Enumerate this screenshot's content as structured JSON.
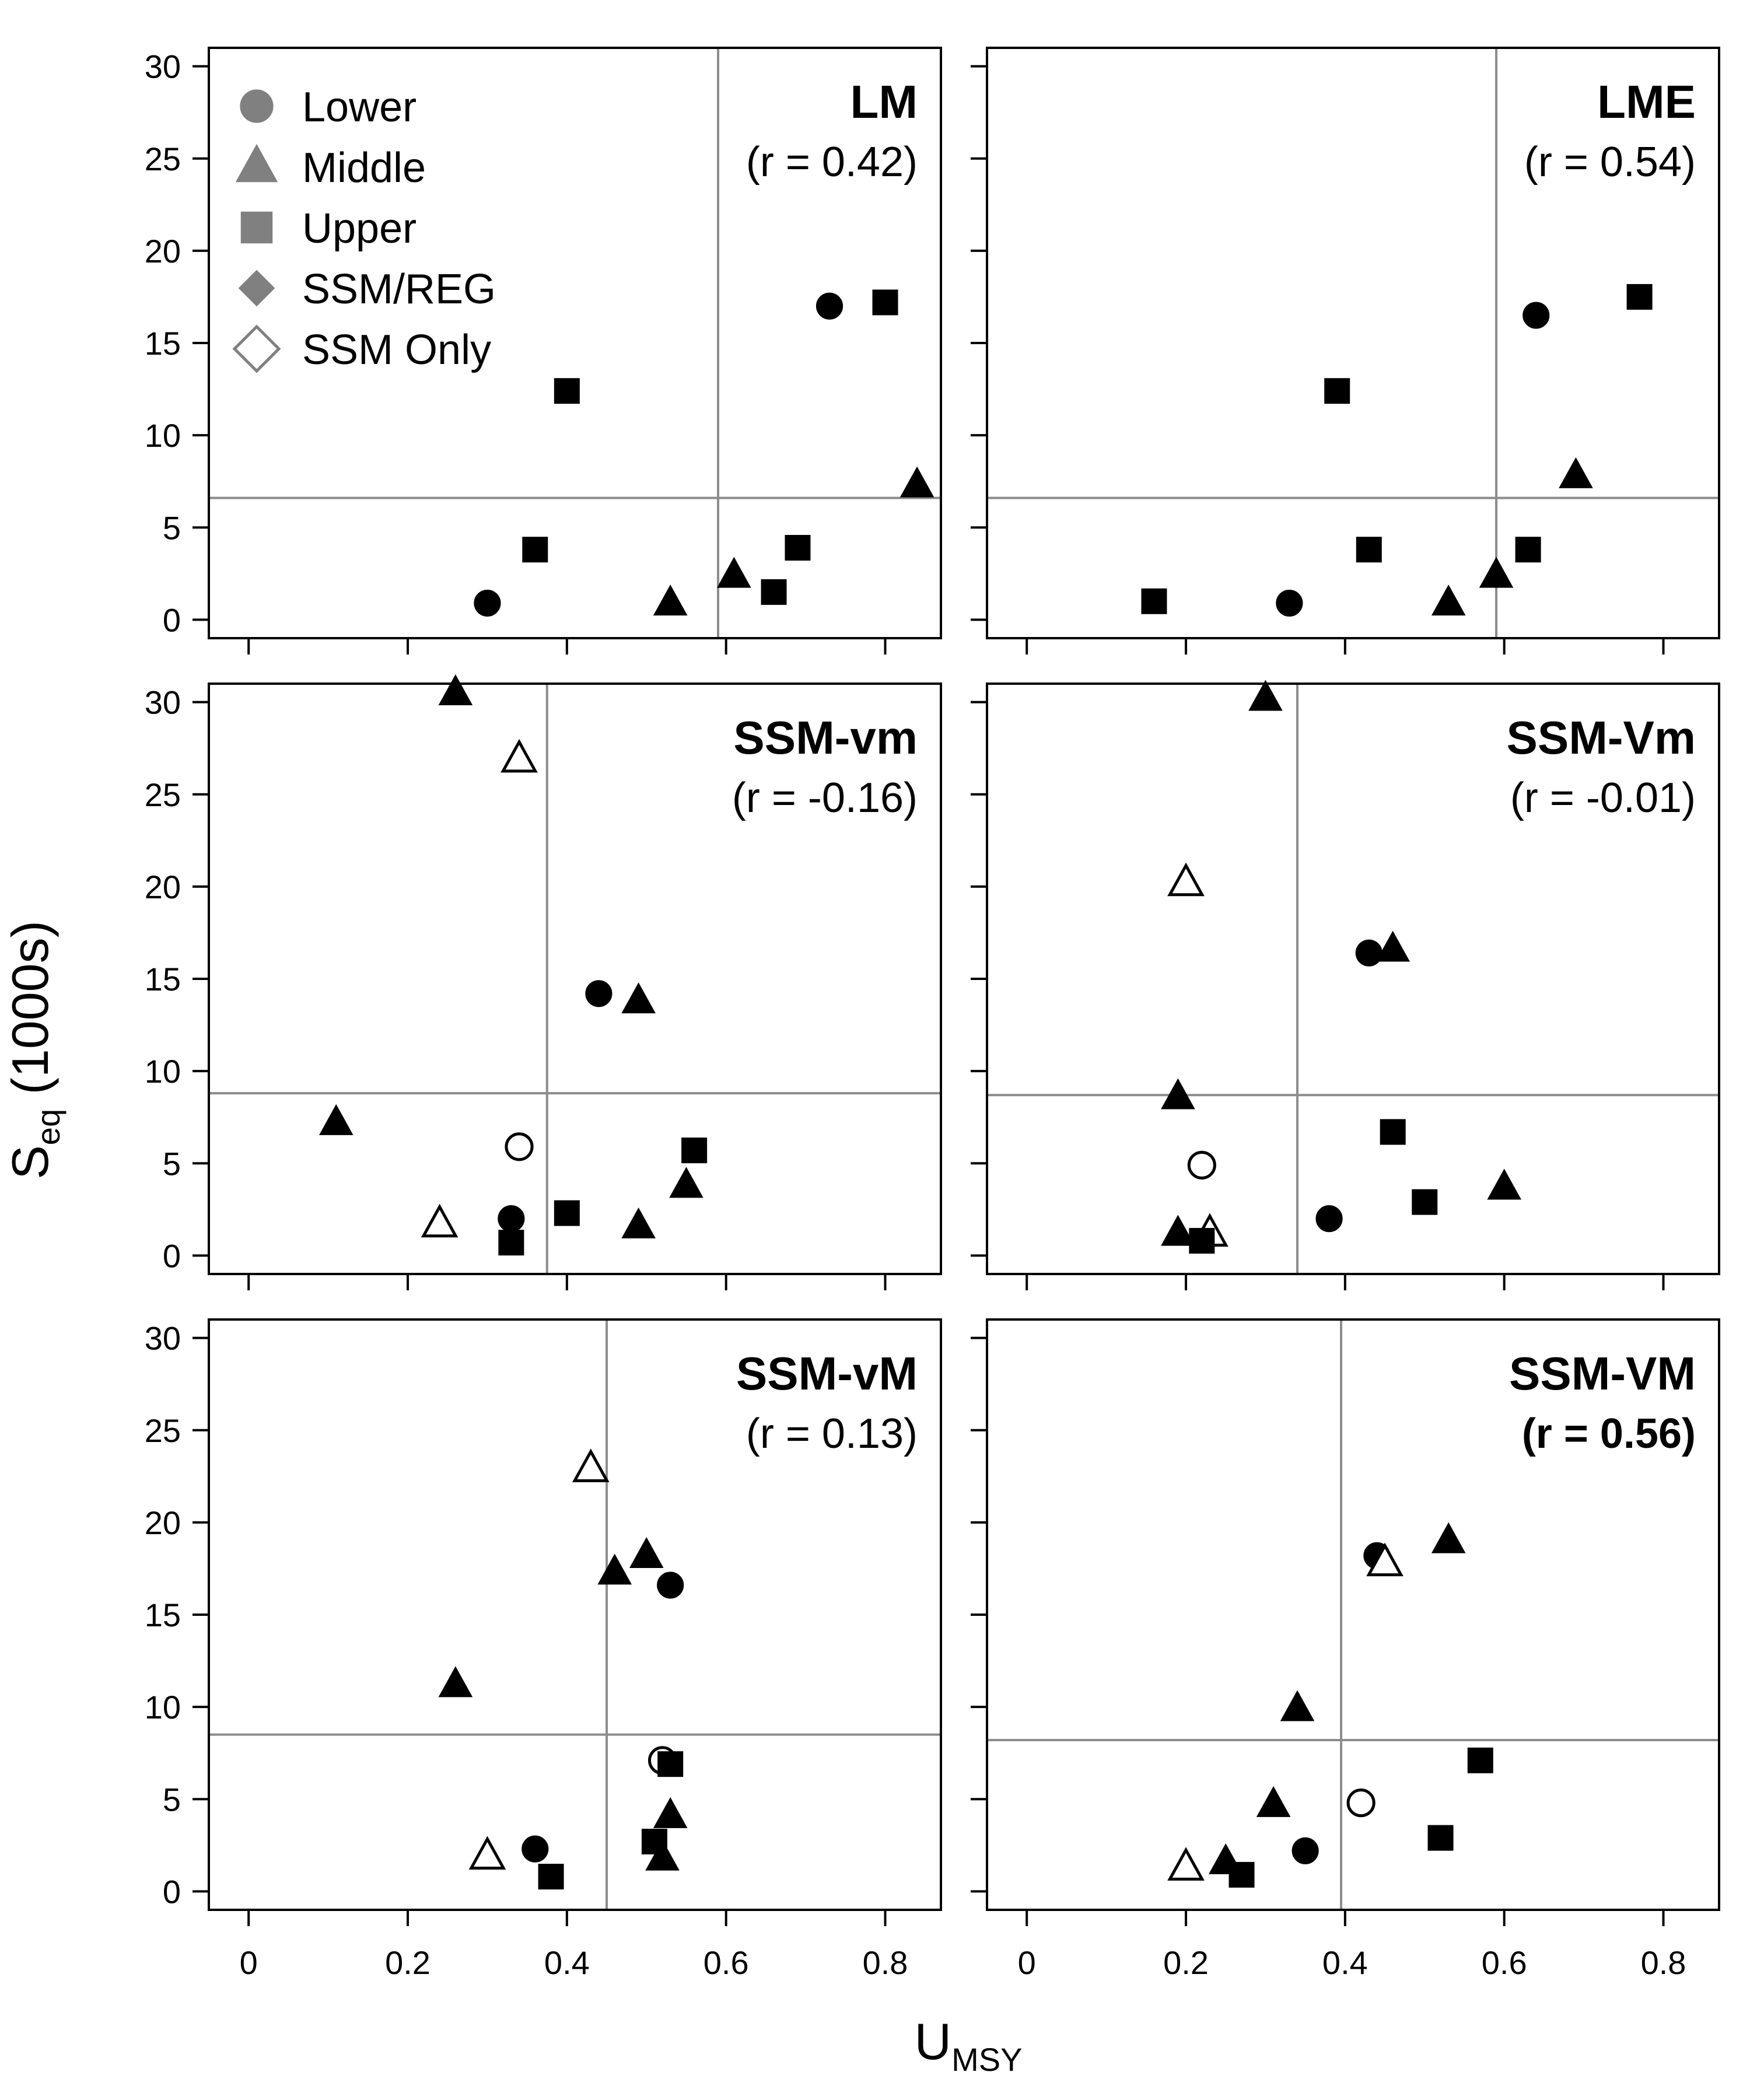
{
  "axes": {
    "xlabel_main": "U",
    "xlabel_sub": "MSY",
    "ylabel_main": "S",
    "ylabel_sub": "eq",
    "ylabel_rest": " (1000s)"
  },
  "colors": {
    "marker_fill": "#000000",
    "marker_open": "#ffffff",
    "ref_line": "#8c8c8c",
    "legend_marker": "#808080"
  },
  "legend": {
    "location": "top-left of first panel",
    "entries": [
      {
        "label": "Lower",
        "shape": "circle",
        "filled": true
      },
      {
        "label": "Middle",
        "shape": "triangle",
        "filled": true
      },
      {
        "label": "Upper",
        "shape": "square",
        "filled": true
      },
      {
        "label": "SSM/REG",
        "shape": "diamond",
        "filled": true
      },
      {
        "label": "SSM Only",
        "shape": "diamond",
        "filled": false
      }
    ]
  },
  "chart_data": [
    {
      "type": "scatter",
      "title": "LM",
      "r_label": "(r = 0.42)",
      "r_bold": false,
      "xlim": [
        -0.05,
        0.87
      ],
      "ylim": [
        -1,
        31
      ],
      "xticks": [
        0,
        0.2,
        0.4,
        0.6,
        0.8
      ],
      "xtick_labels": [
        "0",
        "0.2",
        "0.4",
        "0.6",
        "0.8"
      ],
      "yticks": [
        0,
        5,
        10,
        15,
        20,
        25,
        30
      ],
      "ytick_labels": [
        "0",
        "5",
        "10",
        "15",
        "20",
        "25",
        "30"
      ],
      "ref_lines": {
        "x": 0.59,
        "y": 6.6
      },
      "points": [
        {
          "x": 0.3,
          "y": 0.9,
          "shape": "circle",
          "filled": true
        },
        {
          "x": 0.73,
          "y": 17.0,
          "shape": "circle",
          "filled": true
        },
        {
          "x": 0.53,
          "y": 0.9,
          "shape": "triangle",
          "filled": true
        },
        {
          "x": 0.61,
          "y": 2.4,
          "shape": "triangle",
          "filled": true
        },
        {
          "x": 0.84,
          "y": 7.3,
          "shape": "triangle",
          "filled": true
        },
        {
          "x": 0.36,
          "y": 3.8,
          "shape": "square",
          "filled": true
        },
        {
          "x": 0.4,
          "y": 12.4,
          "shape": "square",
          "filled": true
        },
        {
          "x": 0.66,
          "y": 1.5,
          "shape": "square",
          "filled": true
        },
        {
          "x": 0.69,
          "y": 3.9,
          "shape": "square",
          "filled": true
        },
        {
          "x": 0.8,
          "y": 17.2,
          "shape": "square",
          "filled": true
        }
      ]
    },
    {
      "type": "scatter",
      "title": "LME",
      "r_label": "(r = 0.54)",
      "r_bold": false,
      "xlim": [
        -0.05,
        0.87
      ],
      "ylim": [
        -1,
        31
      ],
      "xticks": [
        0,
        0.2,
        0.4,
        0.6,
        0.8
      ],
      "xtick_labels": [
        "0",
        "0.2",
        "0.4",
        "0.6",
        "0.8"
      ],
      "yticks": [
        0,
        5,
        10,
        15,
        20,
        25,
        30
      ],
      "ytick_labels": [],
      "ref_lines": {
        "x": 0.59,
        "y": 6.6
      },
      "points": [
        {
          "x": 0.33,
          "y": 0.9,
          "shape": "circle",
          "filled": true
        },
        {
          "x": 0.64,
          "y": 16.5,
          "shape": "circle",
          "filled": true
        },
        {
          "x": 0.53,
          "y": 0.9,
          "shape": "triangle",
          "filled": true
        },
        {
          "x": 0.59,
          "y": 2.4,
          "shape": "triangle",
          "filled": true
        },
        {
          "x": 0.69,
          "y": 7.8,
          "shape": "triangle",
          "filled": true
        },
        {
          "x": 0.16,
          "y": 1.0,
          "shape": "square",
          "filled": true
        },
        {
          "x": 0.39,
          "y": 12.4,
          "shape": "square",
          "filled": true
        },
        {
          "x": 0.43,
          "y": 3.8,
          "shape": "square",
          "filled": true
        },
        {
          "x": 0.63,
          "y": 3.8,
          "shape": "square",
          "filled": true
        },
        {
          "x": 0.77,
          "y": 17.5,
          "shape": "square",
          "filled": true
        }
      ]
    },
    {
      "type": "scatter",
      "title": "SSM-vm",
      "r_label": "(r = -0.16)",
      "r_bold": false,
      "xlim": [
        -0.05,
        0.87
      ],
      "ylim": [
        -1,
        31
      ],
      "xticks": [
        0,
        0.2,
        0.4,
        0.6,
        0.8
      ],
      "xtick_labels": [
        "0",
        "0.2",
        "0.4",
        "0.6",
        "0.8"
      ],
      "yticks": [
        0,
        5,
        10,
        15,
        20,
        25,
        30
      ],
      "ytick_labels": [
        "0",
        "5",
        "10",
        "15",
        "20",
        "25",
        "30"
      ],
      "ref_lines": {
        "x": 0.375,
        "y": 8.8
      },
      "points": [
        {
          "x": 0.33,
          "y": 2.0,
          "shape": "circle",
          "filled": true
        },
        {
          "x": 0.44,
          "y": 14.2,
          "shape": "circle",
          "filled": true
        },
        {
          "x": 0.34,
          "y": 5.9,
          "shape": "circle",
          "filled": false
        },
        {
          "x": 0.11,
          "y": 7.2,
          "shape": "triangle",
          "filled": true
        },
        {
          "x": 0.26,
          "y": 30.5,
          "shape": "triangle",
          "filled": true
        },
        {
          "x": 0.49,
          "y": 13.8,
          "shape": "triangle",
          "filled": true
        },
        {
          "x": 0.49,
          "y": 1.6,
          "shape": "triangle",
          "filled": true
        },
        {
          "x": 0.55,
          "y": 3.8,
          "shape": "triangle",
          "filled": true
        },
        {
          "x": 0.34,
          "y": 26.9,
          "shape": "triangle",
          "filled": false
        },
        {
          "x": 0.24,
          "y": 1.7,
          "shape": "triangle",
          "filled": false
        },
        {
          "x": 0.33,
          "y": 0.7,
          "shape": "square",
          "filled": true
        },
        {
          "x": 0.4,
          "y": 2.3,
          "shape": "square",
          "filled": true
        },
        {
          "x": 0.56,
          "y": 5.7,
          "shape": "square",
          "filled": true
        }
      ]
    },
    {
      "type": "scatter",
      "title": "SSM-Vm",
      "r_label": "(r = -0.01)",
      "r_bold": false,
      "xlim": [
        -0.05,
        0.87
      ],
      "ylim": [
        -1,
        31
      ],
      "xticks": [
        0,
        0.2,
        0.4,
        0.6,
        0.8
      ],
      "xtick_labels": [
        "0",
        "0.2",
        "0.4",
        "0.6",
        "0.8"
      ],
      "yticks": [
        0,
        5,
        10,
        15,
        20,
        25,
        30
      ],
      "ytick_labels": [],
      "ref_lines": {
        "x": 0.34,
        "y": 8.7
      },
      "points": [
        {
          "x": 0.38,
          "y": 2.0,
          "shape": "circle",
          "filled": true
        },
        {
          "x": 0.43,
          "y": 16.4,
          "shape": "circle",
          "filled": true
        },
        {
          "x": 0.22,
          "y": 4.9,
          "shape": "circle",
          "filled": false
        },
        {
          "x": 0.3,
          "y": 30.2,
          "shape": "triangle",
          "filled": true
        },
        {
          "x": 0.46,
          "y": 16.6,
          "shape": "triangle",
          "filled": true
        },
        {
          "x": 0.19,
          "y": 8.6,
          "shape": "triangle",
          "filled": true
        },
        {
          "x": 0.19,
          "y": 1.2,
          "shape": "triangle",
          "filled": true
        },
        {
          "x": 0.6,
          "y": 3.7,
          "shape": "triangle",
          "filled": true
        },
        {
          "x": 0.2,
          "y": 20.2,
          "shape": "triangle",
          "filled": false
        },
        {
          "x": 0.23,
          "y": 1.2,
          "shape": "triangle",
          "filled": false
        },
        {
          "x": 0.22,
          "y": 0.8,
          "shape": "square",
          "filled": true
        },
        {
          "x": 0.46,
          "y": 6.7,
          "shape": "square",
          "filled": true
        },
        {
          "x": 0.5,
          "y": 2.9,
          "shape": "square",
          "filled": true
        }
      ]
    },
    {
      "type": "scatter",
      "title": "SSM-vM",
      "r_label": "(r = 0.13)",
      "r_bold": false,
      "xlim": [
        -0.05,
        0.87
      ],
      "ylim": [
        -1,
        31
      ],
      "xticks": [
        0,
        0.2,
        0.4,
        0.6,
        0.8
      ],
      "xtick_labels": [
        "0",
        "0.2",
        "0.4",
        "0.6",
        "0.8"
      ],
      "yticks": [
        0,
        5,
        10,
        15,
        20,
        25,
        30
      ],
      "ytick_labels": [
        "0",
        "5",
        "10",
        "15",
        "20",
        "25",
        "30"
      ],
      "ref_lines": {
        "x": 0.45,
        "y": 8.5
      },
      "points": [
        {
          "x": 0.36,
          "y": 2.3,
          "shape": "circle",
          "filled": true
        },
        {
          "x": 0.53,
          "y": 16.6,
          "shape": "circle",
          "filled": true
        },
        {
          "x": 0.52,
          "y": 7.1,
          "shape": "circle",
          "filled": false
        },
        {
          "x": 0.26,
          "y": 11.2,
          "shape": "triangle",
          "filled": true
        },
        {
          "x": 0.46,
          "y": 17.3,
          "shape": "triangle",
          "filled": true
        },
        {
          "x": 0.5,
          "y": 18.2,
          "shape": "triangle",
          "filled": true
        },
        {
          "x": 0.53,
          "y": 4.1,
          "shape": "triangle",
          "filled": true
        },
        {
          "x": 0.52,
          "y": 1.8,
          "shape": "triangle",
          "filled": true
        },
        {
          "x": 0.43,
          "y": 22.9,
          "shape": "triangle",
          "filled": false
        },
        {
          "x": 0.3,
          "y": 1.9,
          "shape": "triangle",
          "filled": false
        },
        {
          "x": 0.38,
          "y": 0.8,
          "shape": "square",
          "filled": true
        },
        {
          "x": 0.51,
          "y": 2.7,
          "shape": "square",
          "filled": true
        },
        {
          "x": 0.53,
          "y": 6.9,
          "shape": "square",
          "filled": true
        }
      ]
    },
    {
      "type": "scatter",
      "title": "SSM-VM",
      "r_label": "(r = 0.56)",
      "r_bold": true,
      "xlim": [
        -0.05,
        0.87
      ],
      "ylim": [
        -1,
        31
      ],
      "xticks": [
        0,
        0.2,
        0.4,
        0.6,
        0.8
      ],
      "xtick_labels": [
        "0",
        "0.2",
        "0.4",
        "0.6",
        "0.8"
      ],
      "yticks": [
        0,
        5,
        10,
        15,
        20,
        25,
        30
      ],
      "ytick_labels": [],
      "ref_lines": {
        "x": 0.395,
        "y": 8.2
      },
      "points": [
        {
          "x": 0.35,
          "y": 2.2,
          "shape": "circle",
          "filled": true
        },
        {
          "x": 0.44,
          "y": 18.2,
          "shape": "circle",
          "filled": true
        },
        {
          "x": 0.42,
          "y": 4.8,
          "shape": "circle",
          "filled": false
        },
        {
          "x": 0.53,
          "y": 19.0,
          "shape": "triangle",
          "filled": true
        },
        {
          "x": 0.34,
          "y": 9.9,
          "shape": "triangle",
          "filled": true
        },
        {
          "x": 0.31,
          "y": 4.7,
          "shape": "triangle",
          "filled": true
        },
        {
          "x": 0.25,
          "y": 1.6,
          "shape": "triangle",
          "filled": true
        },
        {
          "x": 0.45,
          "y": 17.8,
          "shape": "triangle",
          "filled": false
        },
        {
          "x": 0.2,
          "y": 1.3,
          "shape": "triangle",
          "filled": false
        },
        {
          "x": 0.27,
          "y": 0.9,
          "shape": "square",
          "filled": true
        },
        {
          "x": 0.52,
          "y": 2.9,
          "shape": "square",
          "filled": true
        },
        {
          "x": 0.57,
          "y": 7.1,
          "shape": "square",
          "filled": true
        }
      ]
    }
  ]
}
